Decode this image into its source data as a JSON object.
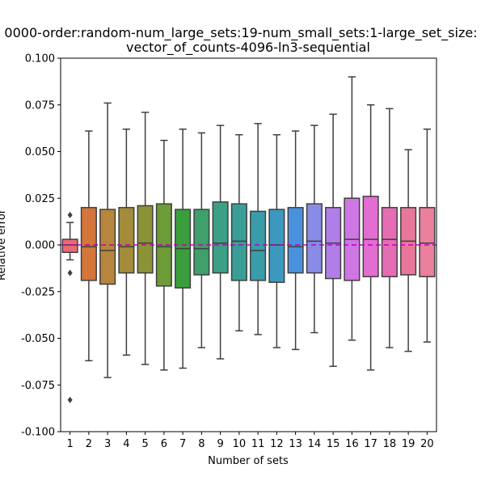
{
  "chart_data": {
    "type": "box",
    "title_lines": [
      "0000-order:random-num_large_sets:19-num_small_sets:1-large_set_size:",
      "vector_of_counts-4096-ln3-sequential"
    ],
    "xlabel": "Number of sets",
    "ylabel": "Relative error",
    "ylim": [
      -0.1,
      0.1
    ],
    "yticks": [
      "-0.100",
      "-0.075",
      "-0.050",
      "-0.025",
      "0.000",
      "0.025",
      "0.050",
      "0.075",
      "0.100"
    ],
    "reference_line": {
      "y": 0.0,
      "style": "dashed",
      "color": "#bf00bf"
    },
    "grid": false,
    "categories": [
      "1",
      "2",
      "3",
      "4",
      "5",
      "6",
      "7",
      "8",
      "9",
      "10",
      "11",
      "12",
      "13",
      "14",
      "15",
      "16",
      "17",
      "18",
      "19",
      "20"
    ],
    "colors": [
      "#e96a74",
      "#d5753a",
      "#b8853c",
      "#a38b3a",
      "#8c9337",
      "#6c9b37",
      "#3a9e3d",
      "#3ea06a",
      "#3ba086",
      "#3a9e97",
      "#3a9ba9",
      "#3c98bf",
      "#4a91dd",
      "#8a8be7",
      "#b17ee9",
      "#cf76e5",
      "#e36dd1",
      "#e66db3",
      "#e8779a",
      "#ea809c"
    ],
    "boxes": [
      {
        "q1": -0.004,
        "median": 0.0,
        "q3": 0.003,
        "whislo": -0.008,
        "whishi": 0.012,
        "fliers": [
          0.016,
          -0.015,
          -0.083
        ]
      },
      {
        "q1": -0.019,
        "median": -0.001,
        "q3": 0.02,
        "whislo": -0.062,
        "whishi": 0.061,
        "fliers": []
      },
      {
        "q1": -0.021,
        "median": -0.003,
        "q3": 0.019,
        "whislo": -0.071,
        "whishi": 0.076,
        "fliers": []
      },
      {
        "q1": -0.015,
        "median": -0.001,
        "q3": 0.02,
        "whislo": -0.059,
        "whishi": 0.062,
        "fliers": []
      },
      {
        "q1": -0.015,
        "median": 0.001,
        "q3": 0.021,
        "whislo": -0.064,
        "whishi": 0.071,
        "fliers": []
      },
      {
        "q1": -0.022,
        "median": -0.001,
        "q3": 0.022,
        "whislo": -0.067,
        "whishi": 0.056,
        "fliers": []
      },
      {
        "q1": -0.023,
        "median": -0.002,
        "q3": 0.019,
        "whislo": -0.066,
        "whishi": 0.062,
        "fliers": []
      },
      {
        "q1": -0.016,
        "median": -0.002,
        "q3": 0.019,
        "whislo": -0.055,
        "whishi": 0.06,
        "fliers": []
      },
      {
        "q1": -0.015,
        "median": 0.001,
        "q3": 0.023,
        "whislo": -0.061,
        "whishi": 0.064,
        "fliers": []
      },
      {
        "q1": -0.019,
        "median": 0.002,
        "q3": 0.022,
        "whislo": -0.046,
        "whishi": 0.059,
        "fliers": []
      },
      {
        "q1": -0.019,
        "median": -0.003,
        "q3": 0.018,
        "whislo": -0.048,
        "whishi": 0.065,
        "fliers": []
      },
      {
        "q1": -0.02,
        "median": 0.0,
        "q3": 0.019,
        "whislo": -0.055,
        "whishi": 0.059,
        "fliers": []
      },
      {
        "q1": -0.015,
        "median": -0.001,
        "q3": 0.02,
        "whislo": -0.056,
        "whishi": 0.061,
        "fliers": []
      },
      {
        "q1": -0.015,
        "median": 0.002,
        "q3": 0.022,
        "whislo": -0.047,
        "whishi": 0.064,
        "fliers": []
      },
      {
        "q1": -0.018,
        "median": 0.001,
        "q3": 0.02,
        "whislo": -0.065,
        "whishi": 0.07,
        "fliers": []
      },
      {
        "q1": -0.019,
        "median": 0.003,
        "q3": 0.025,
        "whislo": -0.051,
        "whishi": 0.09,
        "fliers": []
      },
      {
        "q1": -0.017,
        "median": 0.003,
        "q3": 0.026,
        "whislo": -0.067,
        "whishi": 0.075,
        "fliers": []
      },
      {
        "q1": -0.017,
        "median": 0.003,
        "q3": 0.02,
        "whislo": -0.055,
        "whishi": 0.073,
        "fliers": []
      },
      {
        "q1": -0.016,
        "median": 0.002,
        "q3": 0.02,
        "whislo": -0.057,
        "whishi": 0.051,
        "fliers": []
      },
      {
        "q1": -0.017,
        "median": 0.001,
        "q3": 0.02,
        "whislo": -0.052,
        "whishi": 0.062,
        "fliers": []
      }
    ]
  }
}
